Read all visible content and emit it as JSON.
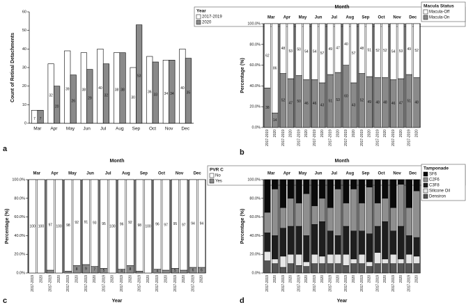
{
  "chart_data": [
    {
      "type": "bar",
      "panel_label": "a",
      "ylabel": "Count of Retinal Detachments",
      "legend_title": "Year",
      "categories": [
        "Mar",
        "Apr",
        "May",
        "Jun",
        "Jul",
        "Aug",
        "Sep",
        "Oct",
        "Nov",
        "Dec"
      ],
      "series": [
        {
          "name": "2017-2019",
          "color": "#ffffff",
          "values": [
            7,
            32,
            39,
            38,
            40,
            38,
            30,
            36,
            34,
            40
          ]
        },
        {
          "name": "2020",
          "color": "#8a8a8a",
          "values": [
            7,
            20,
            26,
            29,
            32,
            38,
            53,
            33,
            34,
            35
          ]
        }
      ],
      "ylim": [
        0,
        60
      ],
      "yticks": [
        0,
        10,
        20,
        30,
        40,
        50,
        60
      ],
      "labels": true
    },
    {
      "type": "facet_stacked_bar",
      "panel_label": "b",
      "facet_title": "Month",
      "ylabel": "Percentage (%)",
      "legend_title": "Macula Status",
      "categories": [
        "Mar",
        "Apr",
        "May",
        "Jun",
        "Jul",
        "Aug",
        "Sep",
        "Oct",
        "Nov",
        "Dec"
      ],
      "groups": [
        "2017-2019",
        "2020"
      ],
      "series": [
        {
          "name": "Macula-Off",
          "color": "#ffffff",
          "values": [
            [
              62,
              86
            ],
            [
              48,
              53
            ],
            [
              50,
              54
            ],
            [
              54,
              57
            ],
            [
              49,
              47
            ],
            [
              40,
              57
            ],
            [
              48,
              51
            ],
            [
              52,
              52
            ],
            [
              54,
              53
            ],
            [
              49,
              52
            ]
          ]
        },
        {
          "name": "Macula-On",
          "color": "#8a8a8a",
          "values": [
            [
              38,
              14
            ],
            [
              52,
              47
            ],
            [
              50,
              46
            ],
            [
              46,
              43
            ],
            [
              51,
              53
            ],
            [
              60,
              43
            ],
            [
              52,
              49
            ],
            [
              48,
              48
            ],
            [
              46,
              47
            ],
            [
              51,
              48
            ]
          ]
        }
      ],
      "ylim": [
        0,
        100
      ],
      "yticks": [
        {
          "value": 0,
          "label": "0.0%"
        },
        {
          "value": 20,
          "label": "20.0%"
        },
        {
          "value": 40,
          "label": "40.0%"
        },
        {
          "value": 60,
          "label": "60.0%"
        },
        {
          "value": 80,
          "label": "80.0%"
        },
        {
          "value": 100,
          "label": "100.0%"
        }
      ],
      "labels": true
    },
    {
      "type": "facet_stacked_bar",
      "panel_label": "c",
      "facet_title": "Month",
      "ylabel": "Percentage (%)",
      "xlabel": "Year",
      "legend_title": "PVR C",
      "categories": [
        "Mar",
        "Apr",
        "May",
        "Jun",
        "Jul",
        "Aug",
        "Sep",
        "Oct",
        "Nov",
        "Dec"
      ],
      "groups": [
        "2017-2019",
        "2020"
      ],
      "series": [
        {
          "name": "No",
          "color": "#ffffff",
          "values": [
            [
              100,
              100
            ],
            [
              97,
              100
            ],
            [
              98,
              92
            ],
            [
              91,
              93
            ],
            [
              95,
              100
            ],
            [
              96,
              92
            ],
            [
              98,
              100
            ],
            [
              96,
              97
            ],
            [
              95,
              97
            ],
            [
              94,
              94
            ]
          ]
        },
        {
          "name": "Yes",
          "color": "#8a8a8a",
          "values": [
            [
              0,
              0
            ],
            [
              3,
              0
            ],
            [
              2,
              8
            ],
            [
              9,
              7
            ],
            [
              5,
              0
            ],
            [
              4,
              8
            ],
            [
              2,
              0
            ],
            [
              4,
              3
            ],
            [
              5,
              3
            ],
            [
              6,
              6
            ]
          ]
        }
      ],
      "ylim": [
        0,
        100
      ],
      "yticks": [
        {
          "value": 0,
          "label": "0.0%"
        },
        {
          "value": 20,
          "label": "20.0%"
        },
        {
          "value": 40,
          "label": "40.0%"
        },
        {
          "value": 60,
          "label": "60.0%"
        },
        {
          "value": 80,
          "label": "80.0%"
        },
        {
          "value": 100,
          "label": "100.0%"
        }
      ],
      "labels": true
    },
    {
      "type": "facet_stacked_bar",
      "panel_label": "d",
      "facet_title": "Month",
      "ylabel": "Percentage (%)",
      "xlabel": "Year",
      "legend_title": "Tamponade",
      "categories": [
        "Mar",
        "Apr",
        "May",
        "Jun",
        "Jul",
        "Aug",
        "Sep",
        "Oct",
        "Nov",
        "Dec"
      ],
      "groups": [
        "2017-2019",
        "2020"
      ],
      "series": [
        {
          "name": "SF6",
          "color": "#0a0a0a",
          "values": [
            [
              35,
              10
            ],
            [
              30,
              20
            ],
            [
              25,
              15
            ],
            [
              28,
              20
            ],
            [
              30,
              10
            ],
            [
              25,
              10
            ],
            [
              25,
              8
            ],
            [
              25,
              20
            ],
            [
              30,
              5
            ],
            [
              30,
              12
            ]
          ]
        },
        {
          "name": "C2F6",
          "color": "#8f8f8f",
          "values": [
            [
              22,
              50
            ],
            [
              22,
              30
            ],
            [
              25,
              45
            ],
            [
              20,
              25
            ],
            [
              25,
              50
            ],
            [
              25,
              45
            ],
            [
              30,
              50
            ],
            [
              25,
              25
            ],
            [
              25,
              45
            ],
            [
              30,
              50
            ]
          ]
        },
        {
          "name": "C3F8",
          "color": "#1e1e1e",
          "values": [
            [
              20,
              25
            ],
            [
              30,
              30
            ],
            [
              30,
              28
            ],
            [
              32,
              37
            ],
            [
              25,
              20
            ],
            [
              30,
              30
            ],
            [
              25,
              30
            ],
            [
              28,
              40
            ],
            [
              25,
              35
            ],
            [
              20,
              20
            ]
          ]
        },
        {
          "name": "Silicone Oil",
          "color": "#e6e6e6",
          "values": [
            [
              10,
              5
            ],
            [
              12,
              10
            ],
            [
              12,
              5
            ],
            [
              10,
              8
            ],
            [
              10,
              10
            ],
            [
              12,
              5
            ],
            [
              10,
              5
            ],
            [
              12,
              5
            ],
            [
              10,
              5
            ],
            [
              10,
              8
            ]
          ]
        },
        {
          "name": "Densiron",
          "color": "#555555",
          "values": [
            [
              13,
              10
            ],
            [
              6,
              10
            ],
            [
              8,
              7
            ],
            [
              10,
              10
            ],
            [
              10,
              10
            ],
            [
              8,
              10
            ],
            [
              10,
              7
            ],
            [
              10,
              10
            ],
            [
              10,
              10
            ],
            [
              10,
              10
            ]
          ]
        }
      ],
      "ylim": [
        0,
        100
      ],
      "yticks": [
        {
          "value": 0,
          "label": "0.0%"
        },
        {
          "value": 20,
          "label": "20.0%"
        },
        {
          "value": 40,
          "label": "40.0%"
        },
        {
          "value": 60,
          "label": "60.0%"
        },
        {
          "value": 80,
          "label": "80.0%"
        },
        {
          "value": 100,
          "label": "100.0%"
        }
      ],
      "labels": false
    }
  ]
}
